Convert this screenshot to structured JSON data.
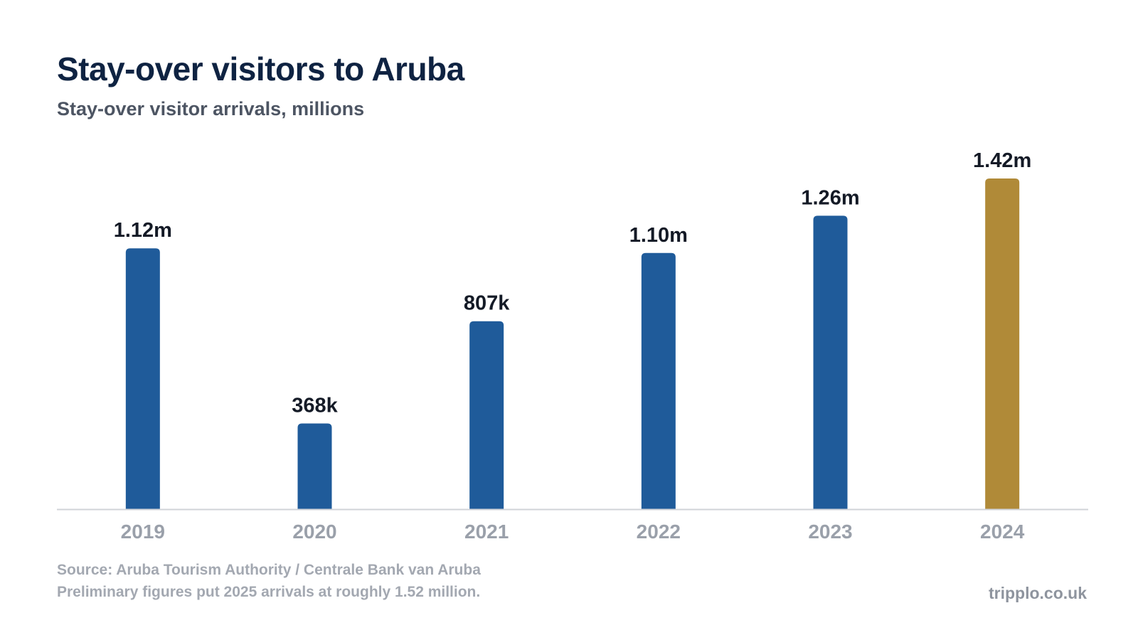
{
  "header": {
    "title": "Stay-over visitors to Aruba",
    "subtitle": "Stay-over visitor arrivals, millions"
  },
  "chart_data": {
    "type": "bar",
    "categories": [
      "2019",
      "2020",
      "2021",
      "2022",
      "2023",
      "2024"
    ],
    "values": [
      1.12,
      0.368,
      0.807,
      1.1,
      1.26,
      1.42
    ],
    "value_labels": [
      "1.12m",
      "368k",
      "807k",
      "1.10m",
      "1.26m",
      "1.42m"
    ],
    "ylim": [
      0,
      1.42
    ],
    "grid": false,
    "highlight_category": "2024",
    "colors": {
      "default": "#1f5b9a",
      "highlight": "#b08a38",
      "axis": "#d0d3d8"
    }
  },
  "footer": {
    "source": "Source: Aruba Tourism Authority / Centrale Bank van Aruba",
    "note": "Preliminary figures put 2025 arrivals at roughly 1.52 million.",
    "brand": "tripplo.co.uk"
  }
}
